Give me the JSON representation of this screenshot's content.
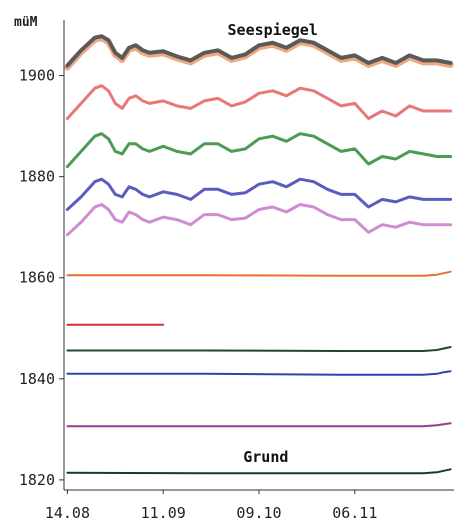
{
  "chart_data": {
    "type": "line",
    "ylabel": "müM",
    "ylim": [
      1818,
      1911
    ],
    "yticks": [
      1820,
      1840,
      1860,
      1880,
      1900
    ],
    "x_categories": [
      "14.08",
      "11.09",
      "09.10",
      "06.11"
    ],
    "x_tick_positions": [
      0,
      28,
      56,
      84
    ],
    "xlim": [
      -1,
      113
    ],
    "grid": false,
    "annotations": [
      {
        "text": "Seespiegel",
        "x": 60,
        "y": 1908
      },
      {
        "text": "Grund",
        "x": 58,
        "y": 1823.5
      }
    ],
    "colors": {
      "seespiegel": "#5a5a5a",
      "seespiegel_halo": "#f0a880",
      "depth1": "#e87878",
      "depth2": "#4c9a54",
      "depth3": "#5b5bc0",
      "depth4": "#d08cd0",
      "bottom_orange": "#e8702a",
      "bottom_red": "#c83232",
      "bottom_darkgreen": "#1f4a2a",
      "bottom_blue": "#2a44b0",
      "bottom_purple": "#9a3a8a",
      "bottom_grund": "#1a3a2a"
    },
    "series": [
      {
        "key": "seespiegel",
        "x": [
          0,
          4,
          8,
          10,
          12,
          14,
          16,
          18,
          20,
          22,
          24,
          28,
          32,
          36,
          40,
          44,
          48,
          52,
          56,
          60,
          64,
          68,
          72,
          76,
          80,
          84,
          88,
          92,
          96,
          100,
          104,
          108,
          112
        ],
        "y": [
          1902,
          1905,
          1907.5,
          1907.8,
          1907,
          1904.5,
          1903.5,
          1905.5,
          1906,
          1905,
          1904.5,
          1904.8,
          1903.8,
          1903,
          1904.5,
          1905,
          1903.5,
          1904.2,
          1906,
          1906.5,
          1905.5,
          1907,
          1906.5,
          1905,
          1903.5,
          1904,
          1902.5,
          1903.5,
          1902.5,
          1904,
          1903,
          1903,
          1902.5
        ]
      },
      {
        "key": "depth1",
        "x": [
          0,
          4,
          8,
          10,
          12,
          14,
          16,
          18,
          20,
          22,
          24,
          28,
          32,
          36,
          40,
          44,
          48,
          52,
          56,
          60,
          64,
          68,
          72,
          76,
          80,
          84,
          88,
          92,
          96,
          100,
          104,
          108,
          112
        ],
        "y": [
          1891.5,
          1894.5,
          1897.5,
          1898,
          1897,
          1894.5,
          1893.5,
          1895.5,
          1896,
          1895,
          1894.5,
          1895,
          1894,
          1893.5,
          1895,
          1895.5,
          1894,
          1894.8,
          1896.5,
          1897,
          1896,
          1897.5,
          1897,
          1895.5,
          1894,
          1894.5,
          1891.5,
          1893,
          1892,
          1894,
          1893,
          1893,
          1893
        ]
      },
      {
        "key": "depth2",
        "x": [
          0,
          4,
          8,
          10,
          12,
          14,
          16,
          18,
          20,
          22,
          24,
          28,
          32,
          36,
          40,
          44,
          48,
          52,
          56,
          60,
          64,
          68,
          72,
          76,
          80,
          84,
          88,
          92,
          96,
          100,
          104,
          108,
          112
        ],
        "y": [
          1882,
          1885,
          1888,
          1888.5,
          1887.5,
          1885,
          1884.5,
          1886.5,
          1886.5,
          1885.5,
          1885,
          1886,
          1885,
          1884.5,
          1886.5,
          1886.5,
          1885,
          1885.5,
          1887.5,
          1888,
          1887,
          1888.5,
          1888,
          1886.5,
          1885,
          1885.5,
          1882.5,
          1884,
          1883.5,
          1885,
          1884.5,
          1884,
          1884
        ]
      },
      {
        "key": "depth3",
        "x": [
          0,
          4,
          8,
          10,
          12,
          14,
          16,
          18,
          20,
          22,
          24,
          28,
          32,
          36,
          40,
          44,
          48,
          52,
          56,
          60,
          64,
          68,
          72,
          76,
          80,
          84,
          88,
          92,
          96,
          100,
          104,
          108,
          112
        ],
        "y": [
          1873.5,
          1876,
          1879,
          1879.5,
          1878.5,
          1876.5,
          1876,
          1878,
          1877.5,
          1876.5,
          1876,
          1877,
          1876.5,
          1875.5,
          1877.5,
          1877.5,
          1876.5,
          1876.8,
          1878.5,
          1879,
          1878,
          1879.5,
          1879,
          1877.5,
          1876.5,
          1876.5,
          1874,
          1875.5,
          1875,
          1876,
          1875.5,
          1875.5,
          1875.5
        ]
      },
      {
        "key": "depth4",
        "x": [
          0,
          4,
          8,
          10,
          12,
          14,
          16,
          18,
          20,
          22,
          24,
          28,
          32,
          36,
          40,
          44,
          48,
          52,
          56,
          60,
          64,
          68,
          72,
          76,
          80,
          84,
          88,
          92,
          96,
          100,
          104,
          108,
          112
        ],
        "y": [
          1868.5,
          1871,
          1874,
          1874.5,
          1873.5,
          1871.5,
          1871,
          1873,
          1872.5,
          1871.5,
          1871,
          1872,
          1871.5,
          1870.5,
          1872.5,
          1872.5,
          1871.5,
          1871.8,
          1873.5,
          1874,
          1873,
          1874.5,
          1874,
          1872.5,
          1871.5,
          1871.5,
          1869,
          1870.5,
          1870,
          1871,
          1870.5,
          1870.5,
          1870.5
        ]
      },
      {
        "key": "bottom_orange",
        "x": [
          0,
          40,
          80,
          104,
          108,
          110,
          112
        ],
        "y": [
          1860.5,
          1860.5,
          1860.4,
          1860.4,
          1860.6,
          1860.9,
          1861.2
        ]
      },
      {
        "key": "bottom_red",
        "x": [
          0,
          28
        ],
        "y": [
          1850.7,
          1850.7
        ]
      },
      {
        "key": "bottom_darkgreen",
        "x": [
          0,
          40,
          80,
          104,
          108,
          110,
          112
        ],
        "y": [
          1845.6,
          1845.6,
          1845.5,
          1845.5,
          1845.7,
          1846,
          1846.3
        ]
      },
      {
        "key": "bottom_blue",
        "x": [
          0,
          40,
          80,
          104,
          108,
          110,
          112
        ],
        "y": [
          1841.0,
          1841.0,
          1840.8,
          1840.8,
          1841.0,
          1841.3,
          1841.5
        ]
      },
      {
        "key": "bottom_purple",
        "x": [
          0,
          40,
          80,
          104,
          108,
          110,
          112
        ],
        "y": [
          1830.6,
          1830.6,
          1830.6,
          1830.6,
          1830.8,
          1831.0,
          1831.2
        ]
      },
      {
        "key": "bottom_grund",
        "x": [
          0,
          40,
          80,
          104,
          108,
          110,
          112
        ],
        "y": [
          1821.4,
          1821.3,
          1821.3,
          1821.3,
          1821.5,
          1821.8,
          1822.1
        ]
      }
    ]
  }
}
